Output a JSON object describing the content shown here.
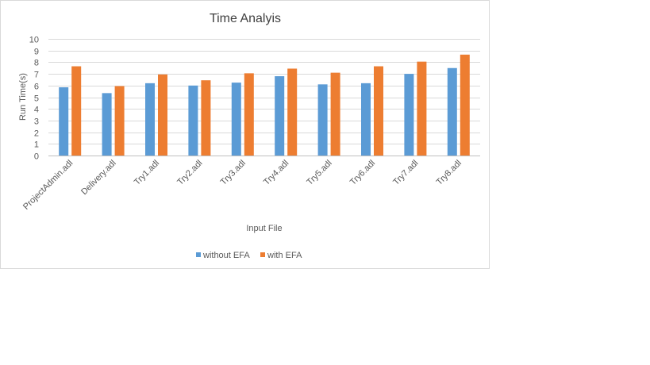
{
  "chart_data": {
    "type": "bar",
    "title": "Time Analyis",
    "xlabel": "Input File",
    "ylabel": "Run Time(s)",
    "ylim": [
      0,
      10
    ],
    "yticks": [
      0,
      1,
      2,
      3,
      4,
      5,
      6,
      7,
      8,
      9,
      10
    ],
    "grid": true,
    "legend_position": "bottom",
    "categories": [
      "ProjectAdmin.adl",
      "Delivery.adl",
      "Try1.adl",
      "Try2.adl",
      "Try3.adl",
      "Try4.adl",
      "Try5.adl",
      "Try6.adl",
      "Try7.adl",
      "Try8.adl"
    ],
    "series": [
      {
        "name": "without EFA",
        "color": "#5b9bd5",
        "values": [
          5.85,
          5.35,
          6.2,
          6.0,
          6.25,
          6.8,
          6.1,
          6.2,
          7.0,
          7.5
        ]
      },
      {
        "name": "with EFA",
        "color": "#ed7d31",
        "values": [
          7.65,
          5.95,
          6.95,
          6.45,
          7.05,
          7.45,
          7.1,
          7.65,
          8.05,
          8.65
        ]
      }
    ]
  }
}
